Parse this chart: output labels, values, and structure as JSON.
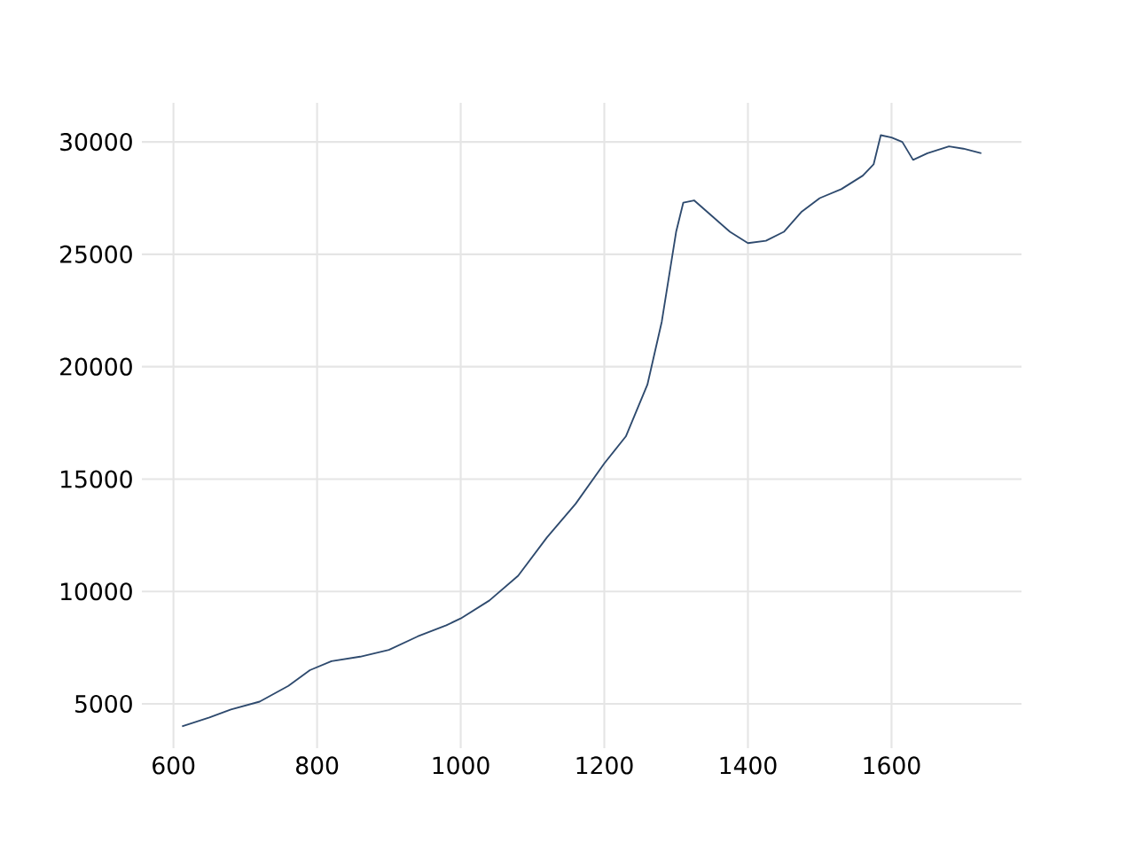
{
  "chart_data": {
    "type": "line",
    "x": [
      612,
      650,
      680,
      720,
      760,
      790,
      820,
      860,
      900,
      940,
      980,
      1000,
      1040,
      1080,
      1120,
      1160,
      1200,
      1230,
      1260,
      1280,
      1300,
      1310,
      1325,
      1350,
      1375,
      1400,
      1425,
      1450,
      1475,
      1500,
      1530,
      1560,
      1575,
      1585,
      1600,
      1615,
      1630,
      1650,
      1680,
      1700,
      1725
    ],
    "series": [
      {
        "color": "#2e4a6e",
        "values": [
          4000,
          4400,
          4750,
          5100,
          5800,
          6500,
          6900,
          7100,
          7400,
          8000,
          8500,
          8800,
          9600,
          10700,
          12400,
          13900,
          15700,
          16900,
          19200,
          22000,
          26000,
          27300,
          27400,
          26700,
          26000,
          25500,
          25600,
          26000,
          26900,
          27500,
          27900,
          28500,
          29000,
          30300,
          30200,
          30000,
          29200,
          29500,
          29800,
          29700,
          29500
        ]
      }
    ],
    "xlim": [
      556,
      1781
    ],
    "ylim": [
      3030,
      31740
    ],
    "xticks": [
      600,
      800,
      1000,
      1200,
      1400,
      1600
    ],
    "yticks": [
      5000,
      10000,
      15000,
      20000,
      25000,
      30000
    ],
    "grid": true
  }
}
